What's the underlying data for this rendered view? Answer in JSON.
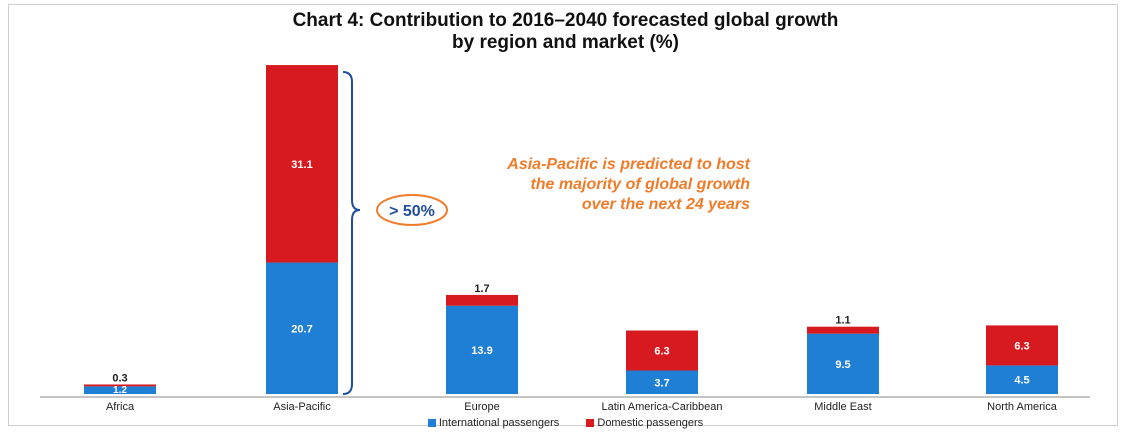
{
  "title_line1": "Chart 4: Contribution to 2016–2040 forecasted global growth",
  "title_line2": "by region and market (%)",
  "annotation": {
    "line1": "Asia-Pacific is predicted to host",
    "line2": "the majority of global growth",
    "line3": "over the next 24 years",
    "bracket_label": "> 50%"
  },
  "colors": {
    "international": "#1f7fd4",
    "domestic": "#d71920",
    "annotation": "#f07c2a"
  },
  "chart_data": {
    "type": "bar",
    "stacked": true,
    "title": "Chart 4: Contribution to 2016–2040 forecasted global growth by region and market (%)",
    "categories": [
      "Africa",
      "Asia-Pacific",
      "Europe",
      "Latin America-Caribbean",
      "Middle East",
      "North America"
    ],
    "series": [
      {
        "name": "International passengers",
        "values": [
          1.2,
          20.7,
          13.9,
          3.7,
          9.5,
          4.5
        ]
      },
      {
        "name": "Domestic passengers",
        "values": [
          0.3,
          31.1,
          1.7,
          6.3,
          1.1,
          6.3
        ]
      }
    ],
    "ylim": [
      0,
      52
    ],
    "grid": false,
    "legend": "bottom"
  }
}
